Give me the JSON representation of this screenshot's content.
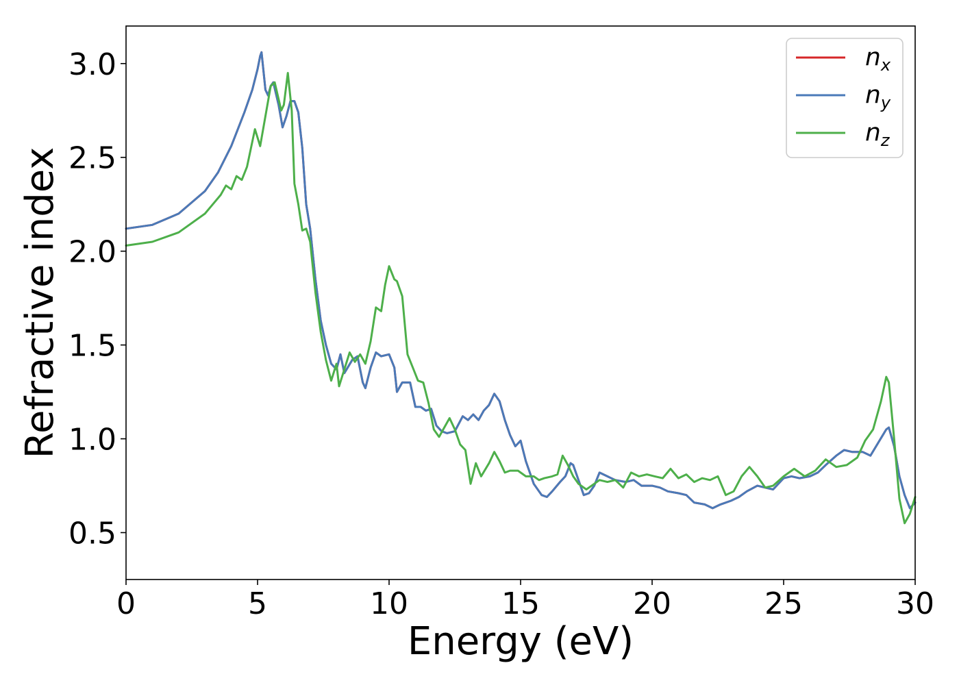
{
  "chart_data": {
    "type": "line",
    "title": "",
    "xlabel": "Energy (eV)",
    "ylabel": "Refractive index",
    "xlim": [
      0,
      30
    ],
    "ylim": [
      0.25,
      3.2
    ],
    "xticks": [
      0,
      5,
      10,
      15,
      20,
      25,
      30
    ],
    "yticks": [
      0.5,
      1.0,
      1.5,
      2.0,
      2.5,
      3.0
    ],
    "xtick_labels": [
      "0",
      "5",
      "10",
      "15",
      "20",
      "25",
      "30"
    ],
    "ytick_labels": [
      "0.5",
      "1.0",
      "1.5",
      "2.0",
      "2.5",
      "3.0"
    ],
    "grid": false,
    "legend_position": "top-right",
    "series": [
      {
        "name": "n",
        "name_subscript": "x",
        "color": "#d62728",
        "x": [
          0,
          1,
          2,
          3,
          3.5,
          4,
          4.5,
          4.8,
          5.0,
          5.1,
          5.15,
          5.3,
          5.4,
          5.5,
          5.6,
          5.8,
          5.95,
          6.1,
          6.25,
          6.4,
          6.55,
          6.7,
          6.85,
          7.0,
          7.2,
          7.4,
          7.6,
          7.8,
          8.0,
          8.15,
          8.3,
          8.6,
          8.8,
          9.0,
          9.1,
          9.3,
          9.5,
          9.7,
          10.0,
          10.2,
          10.3,
          10.5,
          10.8,
          11.0,
          11.2,
          11.4,
          11.6,
          11.8,
          12.0,
          12.2,
          12.5,
          12.8,
          13.0,
          13.2,
          13.4,
          13.6,
          13.8,
          14.0,
          14.2,
          14.4,
          14.6,
          14.8,
          15.0,
          15.2,
          15.5,
          15.8,
          16.0,
          16.2,
          16.5,
          16.7,
          16.9,
          17.0,
          17.2,
          17.4,
          17.6,
          17.8,
          18.0,
          18.3,
          18.6,
          19.0,
          19.3,
          19.6,
          20.0,
          20.3,
          20.6,
          21.0,
          21.3,
          21.6,
          22.0,
          22.3,
          22.6,
          23.0,
          23.3,
          23.6,
          24.0,
          24.3,
          24.6,
          25.0,
          25.3,
          25.6,
          26.0,
          26.3,
          26.6,
          27.0,
          27.3,
          27.6,
          28.0,
          28.3,
          28.6,
          28.9,
          29.0,
          29.2,
          29.4,
          29.6,
          29.8,
          30.0
        ],
        "y": [
          2.12,
          2.14,
          2.2,
          2.32,
          2.42,
          2.56,
          2.74,
          2.86,
          2.97,
          3.04,
          3.06,
          2.86,
          2.83,
          2.88,
          2.9,
          2.78,
          2.66,
          2.72,
          2.8,
          2.8,
          2.74,
          2.55,
          2.25,
          2.12,
          1.85,
          1.63,
          1.5,
          1.4,
          1.37,
          1.45,
          1.35,
          1.42,
          1.44,
          1.3,
          1.27,
          1.38,
          1.46,
          1.44,
          1.45,
          1.38,
          1.25,
          1.3,
          1.3,
          1.17,
          1.17,
          1.15,
          1.16,
          1.07,
          1.04,
          1.03,
          1.04,
          1.12,
          1.1,
          1.13,
          1.1,
          1.15,
          1.18,
          1.24,
          1.2,
          1.1,
          1.02,
          0.96,
          0.99,
          0.88,
          0.76,
          0.7,
          0.69,
          0.72,
          0.77,
          0.8,
          0.87,
          0.86,
          0.78,
          0.7,
          0.71,
          0.75,
          0.82,
          0.8,
          0.78,
          0.77,
          0.78,
          0.75,
          0.75,
          0.74,
          0.72,
          0.71,
          0.7,
          0.66,
          0.65,
          0.63,
          0.65,
          0.67,
          0.69,
          0.72,
          0.75,
          0.74,
          0.73,
          0.79,
          0.8,
          0.79,
          0.8,
          0.82,
          0.86,
          0.91,
          0.94,
          0.93,
          0.93,
          0.91,
          0.98,
          1.05,
          1.06,
          0.96,
          0.8,
          0.7,
          0.63,
          0.66
        ]
      },
      {
        "name": "n",
        "name_subscript": "y",
        "color": "#4a7ab8",
        "x": [
          0,
          1,
          2,
          3,
          3.5,
          4,
          4.5,
          4.8,
          5.0,
          5.1,
          5.15,
          5.3,
          5.4,
          5.5,
          5.6,
          5.8,
          5.95,
          6.1,
          6.25,
          6.4,
          6.55,
          6.7,
          6.85,
          7.0,
          7.2,
          7.4,
          7.6,
          7.8,
          8.0,
          8.15,
          8.3,
          8.6,
          8.8,
          9.0,
          9.1,
          9.3,
          9.5,
          9.7,
          10.0,
          10.2,
          10.3,
          10.5,
          10.8,
          11.0,
          11.2,
          11.4,
          11.6,
          11.8,
          12.0,
          12.2,
          12.5,
          12.8,
          13.0,
          13.2,
          13.4,
          13.6,
          13.8,
          14.0,
          14.2,
          14.4,
          14.6,
          14.8,
          15.0,
          15.2,
          15.5,
          15.8,
          16.0,
          16.2,
          16.5,
          16.7,
          16.9,
          17.0,
          17.2,
          17.4,
          17.6,
          17.8,
          18.0,
          18.3,
          18.6,
          19.0,
          19.3,
          19.6,
          20.0,
          20.3,
          20.6,
          21.0,
          21.3,
          21.6,
          22.0,
          22.3,
          22.6,
          23.0,
          23.3,
          23.6,
          24.0,
          24.3,
          24.6,
          25.0,
          25.3,
          25.6,
          26.0,
          26.3,
          26.6,
          27.0,
          27.3,
          27.6,
          28.0,
          28.3,
          28.6,
          28.9,
          29.0,
          29.2,
          29.4,
          29.6,
          29.8,
          30.0
        ],
        "y": [
          2.12,
          2.14,
          2.2,
          2.32,
          2.42,
          2.56,
          2.74,
          2.86,
          2.97,
          3.04,
          3.06,
          2.86,
          2.83,
          2.88,
          2.9,
          2.78,
          2.66,
          2.72,
          2.8,
          2.8,
          2.74,
          2.55,
          2.25,
          2.12,
          1.85,
          1.63,
          1.5,
          1.4,
          1.37,
          1.45,
          1.35,
          1.42,
          1.44,
          1.3,
          1.27,
          1.38,
          1.46,
          1.44,
          1.45,
          1.38,
          1.25,
          1.3,
          1.3,
          1.17,
          1.17,
          1.15,
          1.16,
          1.07,
          1.04,
          1.03,
          1.04,
          1.12,
          1.1,
          1.13,
          1.1,
          1.15,
          1.18,
          1.24,
          1.2,
          1.1,
          1.02,
          0.96,
          0.99,
          0.88,
          0.76,
          0.7,
          0.69,
          0.72,
          0.77,
          0.8,
          0.87,
          0.86,
          0.78,
          0.7,
          0.71,
          0.75,
          0.82,
          0.8,
          0.78,
          0.77,
          0.78,
          0.75,
          0.75,
          0.74,
          0.72,
          0.71,
          0.7,
          0.66,
          0.65,
          0.63,
          0.65,
          0.67,
          0.69,
          0.72,
          0.75,
          0.74,
          0.73,
          0.79,
          0.8,
          0.79,
          0.8,
          0.82,
          0.86,
          0.91,
          0.94,
          0.93,
          0.93,
          0.91,
          0.98,
          1.05,
          1.06,
          0.96,
          0.8,
          0.7,
          0.63,
          0.66
        ]
      },
      {
        "name": "n",
        "name_subscript": "z",
        "color": "#4daf4a",
        "x": [
          0,
          1,
          2,
          3,
          3.3,
          3.6,
          3.8,
          4.0,
          4.2,
          4.4,
          4.6,
          4.9,
          5.1,
          5.3,
          5.5,
          5.65,
          5.9,
          6.0,
          6.15,
          6.3,
          6.4,
          6.55,
          6.7,
          6.85,
          7.0,
          7.2,
          7.4,
          7.6,
          7.8,
          8.0,
          8.1,
          8.3,
          8.5,
          8.7,
          8.9,
          9.1,
          9.3,
          9.5,
          9.7,
          9.85,
          10.0,
          10.2,
          10.3,
          10.5,
          10.7,
          10.9,
          11.1,
          11.3,
          11.5,
          11.7,
          11.9,
          12.1,
          12.3,
          12.5,
          12.7,
          12.9,
          13.1,
          13.3,
          13.5,
          13.8,
          14.0,
          14.2,
          14.4,
          14.6,
          14.9,
          15.2,
          15.5,
          15.7,
          15.9,
          16.2,
          16.4,
          16.6,
          16.8,
          17.0,
          17.2,
          17.5,
          17.8,
          18.0,
          18.3,
          18.6,
          18.9,
          19.2,
          19.5,
          19.8,
          20.1,
          20.4,
          20.7,
          21.0,
          21.3,
          21.6,
          21.9,
          22.2,
          22.5,
          22.8,
          23.1,
          23.4,
          23.7,
          24.0,
          24.3,
          24.6,
          25.0,
          25.4,
          25.8,
          26.2,
          26.6,
          27.0,
          27.4,
          27.8,
          28.1,
          28.4,
          28.7,
          28.9,
          29.0,
          29.2,
          29.4,
          29.6,
          29.8,
          30.0
        ],
        "y": [
          2.03,
          2.05,
          2.1,
          2.2,
          2.25,
          2.3,
          2.35,
          2.33,
          2.4,
          2.38,
          2.45,
          2.65,
          2.56,
          2.72,
          2.88,
          2.9,
          2.75,
          2.78,
          2.95,
          2.75,
          2.36,
          2.25,
          2.11,
          2.12,
          2.05,
          1.78,
          1.57,
          1.42,
          1.31,
          1.4,
          1.28,
          1.37,
          1.46,
          1.41,
          1.45,
          1.4,
          1.52,
          1.7,
          1.68,
          1.82,
          1.92,
          1.85,
          1.84,
          1.76,
          1.45,
          1.38,
          1.31,
          1.3,
          1.19,
          1.05,
          1.01,
          1.06,
          1.11,
          1.05,
          0.97,
          0.94,
          0.76,
          0.87,
          0.8,
          0.87,
          0.93,
          0.88,
          0.82,
          0.83,
          0.83,
          0.8,
          0.8,
          0.78,
          0.79,
          0.8,
          0.81,
          0.91,
          0.86,
          0.8,
          0.76,
          0.73,
          0.76,
          0.78,
          0.77,
          0.78,
          0.74,
          0.82,
          0.8,
          0.81,
          0.8,
          0.79,
          0.84,
          0.79,
          0.81,
          0.77,
          0.79,
          0.78,
          0.8,
          0.7,
          0.72,
          0.8,
          0.85,
          0.8,
          0.74,
          0.75,
          0.8,
          0.84,
          0.8,
          0.83,
          0.89,
          0.85,
          0.86,
          0.9,
          0.99,
          1.05,
          1.2,
          1.33,
          1.3,
          1.0,
          0.68,
          0.55,
          0.6,
          0.69
        ]
      }
    ]
  }
}
